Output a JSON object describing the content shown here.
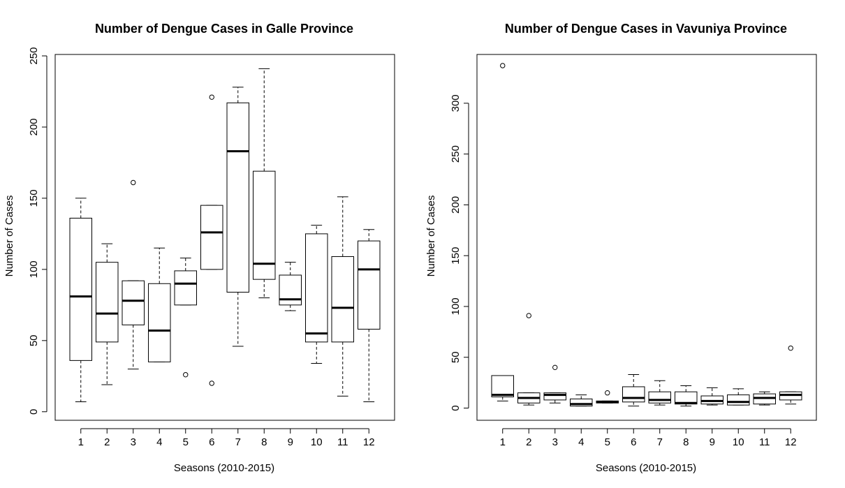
{
  "chart_data": [
    {
      "type": "boxplot",
      "title": "Number of Dengue Cases in Galle Province",
      "xlabel": "Seasons (2010-2015)",
      "ylabel": "Number of Cases",
      "ylim": [
        -6,
        251
      ],
      "yticks": [
        0,
        50,
        100,
        150,
        200,
        250
      ],
      "categories": [
        "1",
        "2",
        "3",
        "4",
        "5",
        "6",
        "7",
        "8",
        "9",
        "10",
        "11",
        "12"
      ],
      "boxes": [
        {
          "min": 7,
          "q1": 36,
          "median": 81,
          "q3": 136,
          "max": 150,
          "outliers": []
        },
        {
          "min": 19,
          "q1": 49,
          "median": 69,
          "q3": 105,
          "max": 118,
          "outliers": []
        },
        {
          "min": 30,
          "q1": 61,
          "median": 78,
          "q3": 92,
          "max": 92,
          "outliers": [
            161
          ]
        },
        {
          "min": 35,
          "q1": 35,
          "median": 57,
          "q3": 90,
          "max": 115,
          "outliers": []
        },
        {
          "min": 75,
          "q1": 75,
          "median": 90,
          "q3": 99,
          "max": 108,
          "outliers": [
            26
          ]
        },
        {
          "min": 100,
          "q1": 100,
          "median": 126,
          "q3": 145,
          "max": 145,
          "outliers": [
            221,
            20
          ]
        },
        {
          "min": 46,
          "q1": 84,
          "median": 183,
          "q3": 217,
          "max": 228,
          "outliers": []
        },
        {
          "min": 80,
          "q1": 93,
          "median": 104,
          "q3": 169,
          "max": 241,
          "outliers": []
        },
        {
          "min": 71,
          "q1": 75,
          "median": 79,
          "q3": 96,
          "max": 105,
          "outliers": []
        },
        {
          "min": 34,
          "q1": 49,
          "median": 55,
          "q3": 125,
          "max": 131,
          "outliers": []
        },
        {
          "min": 11,
          "q1": 49,
          "median": 73,
          "q3": 109,
          "max": 151,
          "outliers": []
        },
        {
          "min": 7,
          "q1": 58,
          "median": 100,
          "q3": 120,
          "max": 128,
          "outliers": []
        }
      ]
    },
    {
      "type": "boxplot",
      "title": "Number of Dengue Cases in Vavuniya Province",
      "xlabel": "Seasons (2010-2015)",
      "ylabel": "Number of Cases",
      "ylim": [
        -12,
        348
      ],
      "yticks": [
        0,
        50,
        100,
        150,
        200,
        250,
        300
      ],
      "categories": [
        "1",
        "2",
        "3",
        "4",
        "5",
        "6",
        "7",
        "8",
        "9",
        "10",
        "11",
        "12"
      ],
      "boxes": [
        {
          "min": 7,
          "q1": 11,
          "median": 13,
          "q3": 32,
          "max": 32,
          "outliers": [
            337
          ]
        },
        {
          "min": 3,
          "q1": 5,
          "median": 10,
          "q3": 15,
          "max": 15,
          "outliers": [
            91
          ]
        },
        {
          "min": 5,
          "q1": 8,
          "median": 13,
          "q3": 15,
          "max": 15,
          "outliers": [
            40
          ]
        },
        {
          "min": 2,
          "q1": 2,
          "median": 4,
          "q3": 9,
          "max": 13,
          "outliers": []
        },
        {
          "min": 5,
          "q1": 5,
          "median": 6,
          "q3": 7,
          "max": 7,
          "outliers": [
            15
          ]
        },
        {
          "min": 2,
          "q1": 6,
          "median": 10,
          "q3": 21,
          "max": 33,
          "outliers": []
        },
        {
          "min": 3,
          "q1": 5,
          "median": 8,
          "q3": 16,
          "max": 27,
          "outliers": []
        },
        {
          "min": 2,
          "q1": 4,
          "median": 5,
          "q3": 16,
          "max": 22,
          "outliers": []
        },
        {
          "min": 3,
          "q1": 4,
          "median": 7,
          "q3": 12,
          "max": 20,
          "outliers": []
        },
        {
          "min": 3,
          "q1": 3,
          "median": 6,
          "q3": 13,
          "max": 19,
          "outliers": []
        },
        {
          "min": 3,
          "q1": 4,
          "median": 10,
          "q3": 14,
          "max": 16,
          "outliers": []
        },
        {
          "min": 4,
          "q1": 8,
          "median": 13,
          "q3": 16,
          "max": 16,
          "outliers": [
            59
          ]
        }
      ]
    }
  ]
}
